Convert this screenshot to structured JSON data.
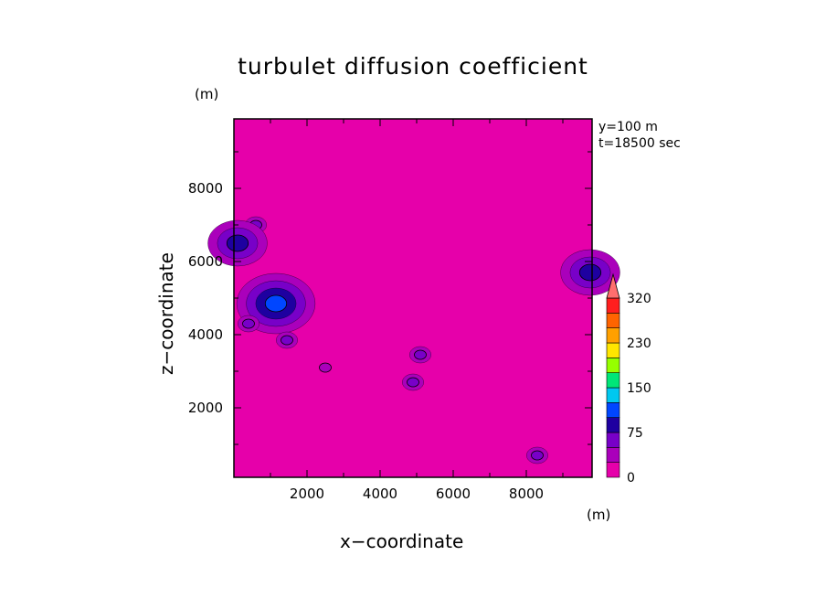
{
  "chart_data": {
    "type": "heatmap",
    "title": "turbulet diffusion coefficient",
    "xlabel": "x−coordinate",
    "ylabel": "z−coordinate",
    "x_unit": "(m)",
    "y_unit": "(m)",
    "xlim": [
      0,
      9800
    ],
    "ylim": [
      100,
      9900
    ],
    "xticks": [
      2000,
      4000,
      6000,
      8000
    ],
    "yticks": [
      2000,
      4000,
      6000,
      8000
    ],
    "annotations": [
      "y=100 m",
      "t=18500 sec"
    ],
    "background_value_color": "#e600aa",
    "colorbar": {
      "levels": [
        0,
        25,
        50,
        75,
        100,
        125,
        150,
        175,
        205,
        230,
        260,
        290,
        320
      ],
      "labels": [
        "0",
        "75",
        "150",
        "230",
        "320"
      ],
      "colors": [
        "#e600aa",
        "#aa00bb",
        "#7800c8",
        "#1e00a0",
        "#0046ff",
        "#00c8f0",
        "#00e678",
        "#96ff00",
        "#ffe600",
        "#ffa000",
        "#ff6400",
        "#ff1e1e"
      ],
      "extend_color": "#ff6e6e"
    },
    "features": [
      {
        "x": 1100,
        "z": 4850,
        "level": 3
      },
      {
        "x": 1150,
        "z": 4850,
        "level": 4
      },
      {
        "x": 600,
        "z": 7000,
        "level": 2
      },
      {
        "x": 100,
        "z": 6500,
        "level": 3
      },
      {
        "x": 1450,
        "z": 3850,
        "level": 2
      },
      {
        "x": 400,
        "z": 4300,
        "level": 2
      },
      {
        "x": 9750,
        "z": 5700,
        "level": 3
      },
      {
        "x": 2500,
        "z": 3100,
        "level": 1
      },
      {
        "x": 5100,
        "z": 3450,
        "level": 2
      },
      {
        "x": 4900,
        "z": 2700,
        "level": 2
      },
      {
        "x": 8300,
        "z": 700,
        "level": 2
      }
    ]
  }
}
